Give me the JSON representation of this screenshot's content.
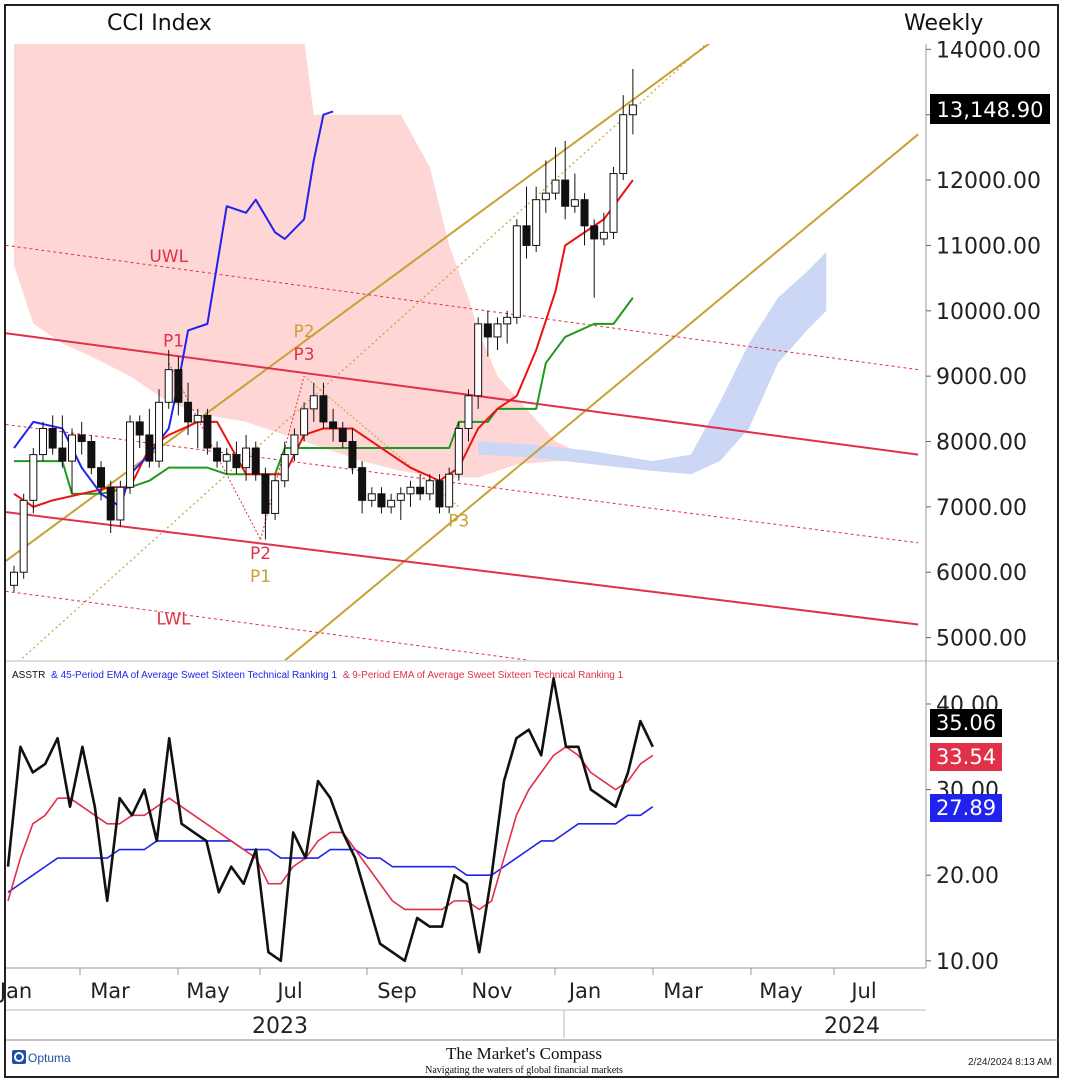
{
  "header": {
    "title": "CCI Index",
    "period": "Weekly"
  },
  "footer": {
    "brand": "Optuma",
    "center_title": "The Market's Compass",
    "center_sub": "Navigating the waters of global financial markets",
    "timestamp": "2/24/2024 8:13 AM"
  },
  "legend": {
    "s1": "ASSTR",
    "s2": "& 45-Period EMA of Average Sweet Sixteen Technical Ranking  1",
    "s3": "& 9-Period EMA of Average Sweet Sixteen Technical Ranking  1"
  },
  "colors": {
    "price_cloud": "#ffd6d6",
    "future_cloud": "#ccd6f5",
    "gold": "#c8a035",
    "red": "#e0304a",
    "blue": "#2222ee",
    "green": "#1e9a1e",
    "ema9": "#ee1111"
  },
  "chart_data": [
    {
      "type": "candlestick",
      "title": "CCI Index",
      "period": "Weekly",
      "y_ticks": [
        "14000.00",
        "13000.00",
        "12000.00",
        "11000.00",
        "10000.00",
        "9000.00",
        "8000.00",
        "7000.00",
        "6000.00",
        "5000.00"
      ],
      "ylim": [
        4600,
        14150
      ],
      "x_ticks": [
        "Jan",
        "Mar",
        "May",
        "Jul",
        "Sep",
        "Nov",
        "Jan",
        "Mar",
        "May",
        "Jul"
      ],
      "years": [
        "2023",
        "2024"
      ],
      "last_price_label": "13,148.90",
      "candles": [
        [
          5800,
          6100,
          5700,
          6000
        ],
        [
          6000,
          7200,
          5900,
          7100
        ],
        [
          7100,
          7900,
          6900,
          7800
        ],
        [
          7800,
          8300,
          7700,
          8200
        ],
        [
          8200,
          8400,
          7800,
          7900
        ],
        [
          7900,
          8400,
          7600,
          7700
        ],
        [
          7700,
          8200,
          7200,
          8100
        ],
        [
          8100,
          8300,
          7800,
          8000
        ],
        [
          8000,
          8100,
          7500,
          7600
        ],
        [
          7600,
          7700,
          7100,
          7300
        ],
        [
          7300,
          7400,
          6600,
          6800
        ],
        [
          6800,
          7400,
          6700,
          7300
        ],
        [
          7300,
          8400,
          7200,
          8300
        ],
        [
          8300,
          8400,
          7900,
          8100
        ],
        [
          8100,
          8500,
          7600,
          7700
        ],
        [
          7700,
          8800,
          7600,
          8600
        ],
        [
          8600,
          9400,
          8500,
          9100
        ],
        [
          9100,
          9300,
          8400,
          8600
        ],
        [
          8600,
          8900,
          8100,
          8300
        ],
        [
          8300,
          8500,
          7900,
          8400
        ],
        [
          8400,
          8500,
          7800,
          7900
        ],
        [
          7900,
          8000,
          7600,
          7700
        ],
        [
          7700,
          7900,
          7500,
          7800
        ],
        [
          7800,
          8000,
          7500,
          7600
        ],
        [
          7600,
          8100,
          7400,
          7900
        ],
        [
          7900,
          8000,
          7400,
          7500
        ],
        [
          7500,
          7600,
          6500,
          6900
        ],
        [
          6900,
          7500,
          6800,
          7400
        ],
        [
          7400,
          8000,
          7300,
          7800
        ],
        [
          7800,
          8200,
          7700,
          8100
        ],
        [
          8100,
          8600,
          8000,
          8500
        ],
        [
          8500,
          8900,
          8300,
          8700
        ],
        [
          8700,
          8900,
          8200,
          8300
        ],
        [
          8300,
          8500,
          8000,
          8200
        ],
        [
          8200,
          8300,
          7900,
          8000
        ],
        [
          8000,
          8200,
          7500,
          7600
        ],
        [
          7600,
          7700,
          6900,
          7100
        ],
        [
          7100,
          7300,
          7000,
          7200
        ],
        [
          7200,
          7300,
          6900,
          7000
        ],
        [
          7000,
          7200,
          6900,
          7100
        ],
        [
          7100,
          7300,
          6800,
          7200
        ],
        [
          7200,
          7400,
          7000,
          7300
        ],
        [
          7300,
          7500,
          7100,
          7200
        ],
        [
          7200,
          7500,
          7100,
          7400
        ],
        [
          7400,
          7500,
          6900,
          7000
        ],
        [
          7000,
          7600,
          6900,
          7500
        ],
        [
          7500,
          8300,
          7400,
          8200
        ],
        [
          8200,
          8800,
          8000,
          8700
        ],
        [
          8700,
          9900,
          8500,
          9800
        ],
        [
          9800,
          10000,
          9300,
          9600
        ],
        [
          9600,
          9900,
          9400,
          9800
        ],
        [
          9800,
          10000,
          9500,
          9900
        ],
        [
          9900,
          11400,
          9800,
          11300
        ],
        [
          11300,
          11900,
          10800,
          11000
        ],
        [
          11000,
          11900,
          10900,
          11700
        ],
        [
          11700,
          12300,
          11500,
          11800
        ],
        [
          11800,
          12500,
          11700,
          12000
        ],
        [
          12000,
          12600,
          11400,
          11600
        ],
        [
          11600,
          12100,
          11500,
          11700
        ],
        [
          11700,
          11800,
          11000,
          11300
        ],
        [
          11300,
          11400,
          10200,
          11100
        ],
        [
          11100,
          11500,
          11000,
          11200
        ],
        [
          11200,
          12200,
          11100,
          12100
        ],
        [
          12100,
          13300,
          12000,
          13000
        ],
        [
          13000,
          13700,
          12700,
          13149
        ]
      ],
      "kijun_sen": [
        [
          0,
          7200
        ],
        [
          2,
          7000
        ],
        [
          4,
          7100
        ],
        [
          7,
          7200
        ],
        [
          10,
          7300
        ],
        [
          12,
          7300
        ],
        [
          14,
          7900
        ],
        [
          16,
          8100
        ],
        [
          19,
          8300
        ],
        [
          21,
          8300
        ],
        [
          24,
          7500
        ],
        [
          28,
          7500
        ],
        [
          30,
          8100
        ],
        [
          32,
          8200
        ],
        [
          35,
          8200
        ],
        [
          38,
          7900
        ],
        [
          41,
          7600
        ],
        [
          44,
          7400
        ],
        [
          46,
          7600
        ],
        [
          48,
          8200
        ],
        [
          50,
          8500
        ],
        [
          52,
          8700
        ],
        [
          54,
          9400
        ],
        [
          56,
          10300
        ],
        [
          57,
          11000
        ],
        [
          59,
          11200
        ],
        [
          61,
          11400
        ],
        [
          63,
          11800
        ],
        [
          64,
          12000
        ]
      ],
      "tenkan_sen": [
        [
          0,
          7700
        ],
        [
          5,
          7700
        ],
        [
          6,
          7200
        ],
        [
          9,
          7200
        ],
        [
          12,
          7300
        ],
        [
          14,
          7400
        ],
        [
          16,
          7600
        ],
        [
          20,
          7600
        ],
        [
          22,
          7500
        ],
        [
          27,
          7500
        ],
        [
          28,
          7900
        ],
        [
          32,
          7900
        ],
        [
          38,
          7900
        ],
        [
          45,
          7900
        ],
        [
          46,
          8300
        ],
        [
          49,
          8300
        ],
        [
          50,
          8500
        ],
        [
          54,
          8500
        ],
        [
          55,
          9200
        ],
        [
          57,
          9600
        ],
        [
          60,
          9800
        ],
        [
          62,
          9800
        ],
        [
          64,
          10200
        ]
      ],
      "chikou_span": [
        [
          0,
          7900
        ],
        [
          2,
          8300
        ],
        [
          5,
          8200
        ],
        [
          7,
          7600
        ],
        [
          9,
          7200
        ],
        [
          11,
          7000
        ],
        [
          12,
          7500
        ],
        [
          14,
          7800
        ],
        [
          16,
          8200
        ],
        [
          17,
          8900
        ],
        [
          18,
          9700
        ],
        [
          20,
          9800
        ],
        [
          21,
          10700
        ],
        [
          22,
          11600
        ],
        [
          24,
          11500
        ],
        [
          25,
          11700
        ],
        [
          27,
          11200
        ],
        [
          28,
          11100
        ],
        [
          30,
          11400
        ],
        [
          31,
          12300
        ],
        [
          32,
          13000
        ],
        [
          33,
          13050
        ]
      ],
      "price_cloud": {
        "upper": [
          [
            0,
            14150
          ],
          [
            30,
            14150
          ],
          [
            31,
            13000
          ],
          [
            40,
            13000
          ],
          [
            43,
            12200
          ],
          [
            45,
            11000
          ],
          [
            47,
            10200
          ],
          [
            48,
            9700
          ],
          [
            50,
            9000
          ],
          [
            53,
            8500
          ],
          [
            56,
            8000
          ],
          [
            59,
            7800
          ]
        ],
        "lower": [
          [
            0,
            10700
          ],
          [
            2,
            9800
          ],
          [
            5,
            9500
          ],
          [
            8,
            9300
          ],
          [
            12,
            9000
          ],
          [
            16,
            8600
          ],
          [
            20,
            8400
          ],
          [
            24,
            8300
          ],
          [
            28,
            8100
          ],
          [
            32,
            7900
          ],
          [
            36,
            7700
          ],
          [
            40,
            7550
          ],
          [
            44,
            7450
          ],
          [
            48,
            7450
          ],
          [
            52,
            7650
          ],
          [
            56,
            7700
          ],
          [
            59,
            7700
          ]
        ]
      },
      "future_cloud": {
        "upper": [
          [
            48,
            8000
          ],
          [
            54,
            7950
          ],
          [
            60,
            7850
          ],
          [
            66,
            7700
          ],
          [
            70,
            7800
          ],
          [
            73,
            8600
          ],
          [
            76,
            9500
          ],
          [
            79,
            10200
          ],
          [
            82,
            10600
          ],
          [
            84,
            10900
          ]
        ],
        "lower": [
          [
            48,
            7800
          ],
          [
            54,
            7750
          ],
          [
            60,
            7650
          ],
          [
            66,
            7550
          ],
          [
            70,
            7500
          ],
          [
            73,
            7700
          ],
          [
            76,
            8200
          ],
          [
            79,
            9200
          ],
          [
            82,
            9700
          ],
          [
            84,
            10000
          ]
        ]
      },
      "annotations": [
        {
          "text": "UWL",
          "color": "red",
          "x": 16,
          "y": 10750
        },
        {
          "text": "P1",
          "color": "red",
          "x": 16.5,
          "y": 9450
        },
        {
          "text": "P2",
          "color": "gold",
          "x": 30,
          "y": 9600
        },
        {
          "text": "P3",
          "color": "red",
          "x": 30,
          "y": 9250
        },
        {
          "text": "P2",
          "color": "red",
          "x": 25.5,
          "y": 6200
        },
        {
          "text": "P1",
          "color": "gold",
          "x": 25.5,
          "y": 5850
        },
        {
          "text": "P3",
          "color": "gold",
          "x": 46,
          "y": 6700
        },
        {
          "text": "LWL",
          "color": "red",
          "x": 16.5,
          "y": 5200
        }
      ]
    },
    {
      "type": "line",
      "legend_title": "ASSTR & 45-Period EMA of Average Sweet Sixteen Technical Ranking 1 & 9-Period EMA of Average Sweet Sixteen Technical Ranking 1",
      "y_ticks": [
        "40.00",
        "30.00",
        "20.00",
        "10.00"
      ],
      "ylim": [
        9.5,
        44
      ],
      "series": [
        {
          "name": "ASSTR",
          "color": "#111111",
          "last_label": "35.06",
          "values": [
            21,
            35,
            32,
            33,
            36,
            28,
            35,
            28,
            17,
            29,
            27,
            30,
            24,
            36,
            26,
            25,
            24,
            18,
            21,
            19,
            23,
            11,
            10,
            25,
            22,
            31,
            29,
            25,
            22,
            17,
            12,
            11,
            10,
            15,
            14,
            14,
            20,
            19,
            11,
            20,
            31,
            36,
            37,
            34,
            43,
            35,
            35,
            30,
            29,
            28,
            32,
            38,
            35
          ]
        },
        {
          "name": "9-Period EMA",
          "color": "#e0304a",
          "last_label": "33.54",
          "values": [
            17,
            22,
            26,
            27,
            29,
            29,
            28,
            27,
            26,
            26,
            27,
            27,
            28,
            29,
            28,
            27,
            26,
            25,
            24,
            23,
            22,
            19,
            19,
            21,
            22,
            24,
            25,
            25,
            23,
            21,
            19,
            17,
            16,
            16,
            16,
            16,
            17,
            17,
            16,
            17,
            22,
            27,
            30,
            32,
            34,
            35,
            34,
            32,
            31,
            30,
            31,
            33,
            34
          ]
        },
        {
          "name": "45-Period EMA",
          "color": "#2222ee",
          "last_label": "27.89",
          "values": [
            18,
            19,
            20,
            21,
            22,
            22,
            22,
            22,
            22,
            23,
            23,
            23,
            24,
            24,
            24,
            24,
            24,
            24,
            24,
            23,
            23,
            23,
            22,
            22,
            22,
            22,
            23,
            23,
            23,
            22,
            22,
            21,
            21,
            21,
            21,
            21,
            21,
            20,
            20,
            20,
            21,
            22,
            23,
            24,
            24,
            25,
            26,
            26,
            26,
            26,
            27,
            27,
            28
          ]
        }
      ]
    }
  ]
}
